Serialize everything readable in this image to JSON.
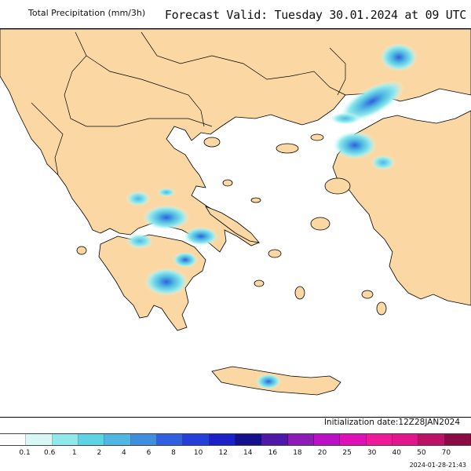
{
  "header": {
    "title": "Total Precipitation (mm/3h)",
    "forecast": "Forecast Valid:  Tuesday 30.01.2024 at 09 UTC"
  },
  "map": {
    "land_color": "#fbd8a3",
    "sea_color": "#ffffff",
    "border_color": "#000000"
  },
  "initialization": "Initialization date:12Z28JAN2024",
  "timestamp": "2024-01-28-21:43",
  "legend": {
    "labels": [
      "0.1",
      "0.6",
      "1",
      "2",
      "4",
      "6",
      "8",
      "10",
      "12",
      "14",
      "16",
      "18",
      "20",
      "25",
      "30",
      "40",
      "50",
      "70"
    ],
    "colors": [
      "#ffffff",
      "#d8f8f6",
      "#8fe9ec",
      "#5dd3e6",
      "#4fb7e2",
      "#3f8fe0",
      "#2f60e0",
      "#2440d8",
      "#1b20c8",
      "#14108e",
      "#5018a8",
      "#8e18b8",
      "#bc10c8",
      "#e010b8",
      "#ef1899",
      "#e2168c",
      "#bb1268",
      "#8c0b44"
    ]
  }
}
